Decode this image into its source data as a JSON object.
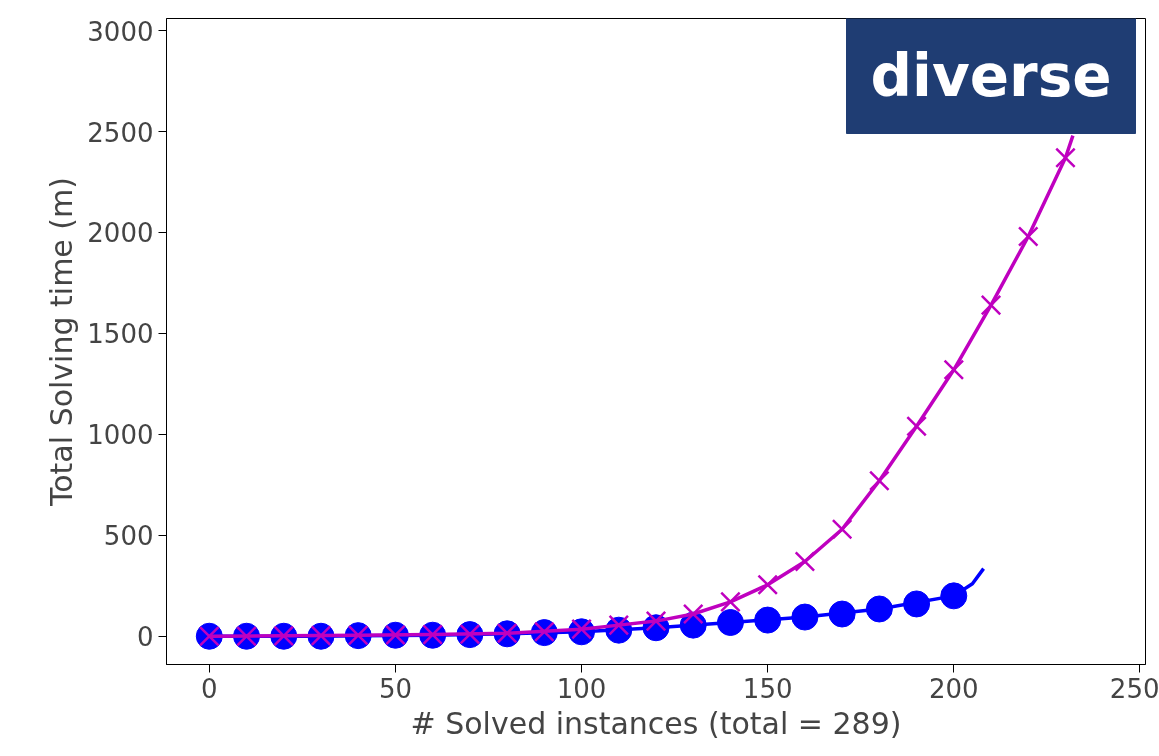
{
  "chart_data": {
    "type": "line",
    "xlabel": "# Solved instances (total = 289)",
    "ylabel": "Total Solving time (m)",
    "xlim": [
      -11.5,
      251.5
    ],
    "ylim": [
      -140,
      3060
    ],
    "xticks": [
      0,
      50,
      100,
      150,
      200,
      250
    ],
    "yticks": [
      0,
      500,
      1000,
      1500,
      2000,
      2500,
      3000
    ],
    "grid": false,
    "annotations": [
      "diverse"
    ],
    "series": [
      {
        "color": "#0000ff",
        "marker": "none",
        "x": [
          0,
          30,
          40,
          60,
          80,
          100,
          120,
          140,
          160,
          180,
          200,
          205,
          208
        ],
        "values": [
          0,
          0,
          3,
          5,
          12,
          22,
          42,
          68,
          95,
          135,
          200,
          260,
          335
        ]
      },
      {
        "type": "scatter",
        "color": "#0000ff",
        "marker": "circle",
        "x": [
          0,
          10,
          20,
          30,
          40,
          50,
          60,
          70,
          80,
          90,
          100,
          110,
          120,
          130,
          140,
          150,
          160,
          170,
          180,
          190,
          200
        ],
        "values": [
          0,
          0,
          0,
          0,
          3,
          5,
          5,
          8,
          12,
          18,
          22,
          30,
          42,
          55,
          68,
          80,
          95,
          110,
          135,
          160,
          200
        ]
      },
      {
        "color": "#bf00bf",
        "marker": "none",
        "x": [
          0,
          20,
          40,
          60,
          80,
          100,
          110,
          120,
          130,
          140,
          150,
          160,
          170,
          180,
          190,
          200,
          210,
          220,
          230,
          232
        ],
        "values": [
          0,
          2,
          5,
          8,
          15,
          35,
          55,
          75,
          110,
          170,
          255,
          370,
          530,
          770,
          1040,
          1320,
          1640,
          1980,
          2370,
          2480
        ]
      },
      {
        "type": "scatter",
        "color": "#bf00bf",
        "marker": "cross",
        "x": [
          0,
          10,
          20,
          30,
          40,
          50,
          60,
          70,
          80,
          90,
          100,
          110,
          120,
          130,
          140,
          150,
          160,
          170,
          180,
          190,
          200,
          210,
          220,
          230
        ],
        "values": [
          0,
          0,
          2,
          3,
          5,
          6,
          8,
          10,
          15,
          22,
          35,
          55,
          75,
          110,
          170,
          255,
          370,
          530,
          770,
          1040,
          1320,
          1640,
          1980,
          2370
        ]
      }
    ]
  }
}
